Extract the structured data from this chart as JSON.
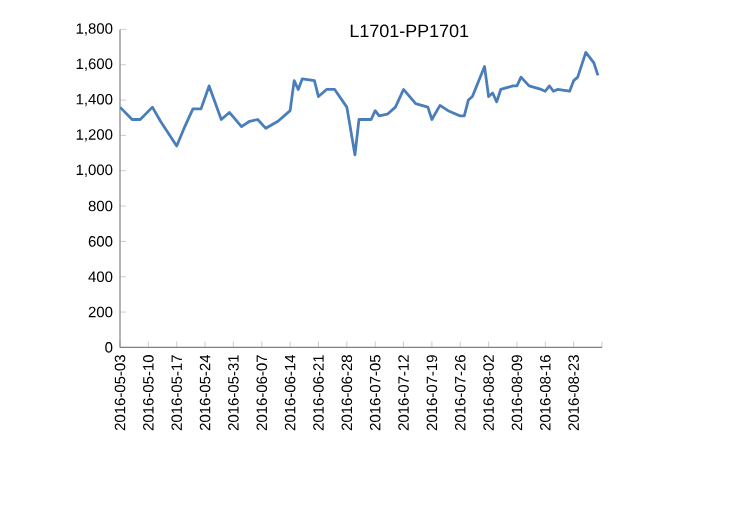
{
  "chart_data": {
    "type": "line",
    "title": "L1701-PP1701",
    "color": "#4a7ebb",
    "line_style": "solid",
    "marker": "none",
    "x": [
      "2016-05-03",
      "2016-05-06",
      "2016-05-08",
      "2016-05-11",
      "2016-05-13",
      "2016-05-17",
      "2016-05-19",
      "2016-05-21",
      "2016-05-23",
      "2016-05-25",
      "2016-05-28",
      "2016-05-30",
      "2016-06-02",
      "2016-06-04",
      "2016-06-06",
      "2016-06-08",
      "2016-06-11",
      "2016-06-14",
      "2016-06-15",
      "2016-06-16",
      "2016-06-17",
      "2016-06-20",
      "2016-06-21",
      "2016-06-23",
      "2016-06-25",
      "2016-06-28",
      "2016-06-30",
      "2016-07-01",
      "2016-07-04",
      "2016-07-05",
      "2016-07-06",
      "2016-07-08",
      "2016-07-10",
      "2016-07-12",
      "2016-07-15",
      "2016-07-18",
      "2016-07-19",
      "2016-07-21",
      "2016-07-23",
      "2016-07-26",
      "2016-07-27",
      "2016-07-28",
      "2016-07-29",
      "2016-08-01",
      "2016-08-02",
      "2016-08-03",
      "2016-08-04",
      "2016-08-05",
      "2016-08-08",
      "2016-08-09",
      "2016-08-10",
      "2016-08-12",
      "2016-08-15",
      "2016-08-16",
      "2016-08-17",
      "2016-08-18",
      "2016-08-19",
      "2016-08-22",
      "2016-08-23",
      "2016-08-24",
      "2016-08-26",
      "2016-08-28",
      "2016-08-29"
    ],
    "values": [
      1360,
      1290,
      1290,
      1360,
      1280,
      1140,
      1250,
      1350,
      1350,
      1480,
      1290,
      1330,
      1250,
      1280,
      1290,
      1240,
      1280,
      1340,
      1510,
      1460,
      1520,
      1510,
      1420,
      1460,
      1460,
      1360,
      1090,
      1290,
      1290,
      1340,
      1310,
      1320,
      1360,
      1460,
      1380,
      1360,
      1290,
      1370,
      1340,
      1310,
      1310,
      1400,
      1420,
      1590,
      1420,
      1440,
      1390,
      1460,
      1480,
      1480,
      1530,
      1480,
      1460,
      1450,
      1480,
      1450,
      1460,
      1450,
      1510,
      1530,
      1670,
      1610,
      1540
    ],
    "xlim": [
      "2016-05-03",
      "2016-08-30"
    ],
    "xticks": [
      "2016-05-03",
      "2016-05-10",
      "2016-05-17",
      "2016-05-24",
      "2016-05-31",
      "2016-06-07",
      "2016-06-14",
      "2016-06-21",
      "2016-06-28",
      "2016-07-05",
      "2016-07-12",
      "2016-07-19",
      "2016-07-26",
      "2016-08-02",
      "2016-08-09",
      "2016-08-16",
      "2016-08-23",
      {
        "value": "2016-08-30",
        "label": null
      }
    ],
    "ylim": [
      0,
      1800
    ],
    "yticks": [
      {
        "value": 0,
        "label": "0"
      },
      {
        "value": 200,
        "label": "200"
      },
      {
        "value": 400,
        "label": "400"
      },
      {
        "value": 600,
        "label": "600"
      },
      {
        "value": 800,
        "label": "800"
      },
      {
        "value": 1000,
        "label": "1,000"
      },
      {
        "value": 1200,
        "label": "1,200"
      },
      {
        "value": 1400,
        "label": "1,400"
      },
      {
        "value": 1600,
        "label": "1,600"
      },
      {
        "value": 1800,
        "label": "1,800"
      }
    ]
  }
}
